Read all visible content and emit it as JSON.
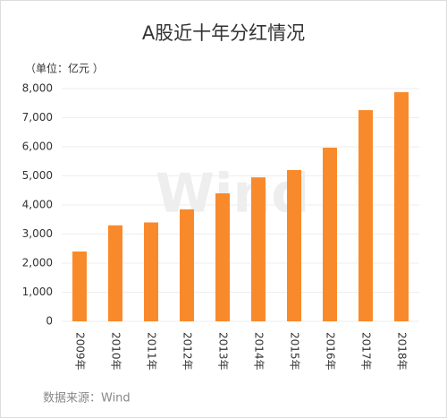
{
  "chart_data": {
    "type": "bar",
    "title": "A股近十年分红情况",
    "unit_label": "（单位：亿元 ）",
    "source": "数据来源：Wind",
    "watermark": "Wind",
    "categories": [
      "2009年",
      "2010年",
      "2011年",
      "2012年",
      "2013年",
      "2014年",
      "2015年",
      "2016年",
      "2017年",
      "2018年"
    ],
    "values": [
      2400,
      3300,
      3400,
      3850,
      4400,
      4950,
      5200,
      5970,
      7260,
      7880
    ],
    "color": "#f98a2c",
    "ylim": [
      0,
      8000
    ],
    "yticks": [
      0,
      {
        "value": 1000,
        "label": "1,000"
      },
      {
        "value": 2000,
        "label": "2,000"
      },
      {
        "value": 3000,
        "label": "3,000"
      },
      {
        "value": 4000,
        "label": "4,000"
      },
      {
        "value": 5000,
        "label": "5,000"
      },
      {
        "value": 6000,
        "label": "6,000"
      },
      {
        "value": 7000,
        "label": "7,000"
      },
      {
        "value": 8000,
        "label": "8,000"
      }
    ],
    "grid": true
  }
}
